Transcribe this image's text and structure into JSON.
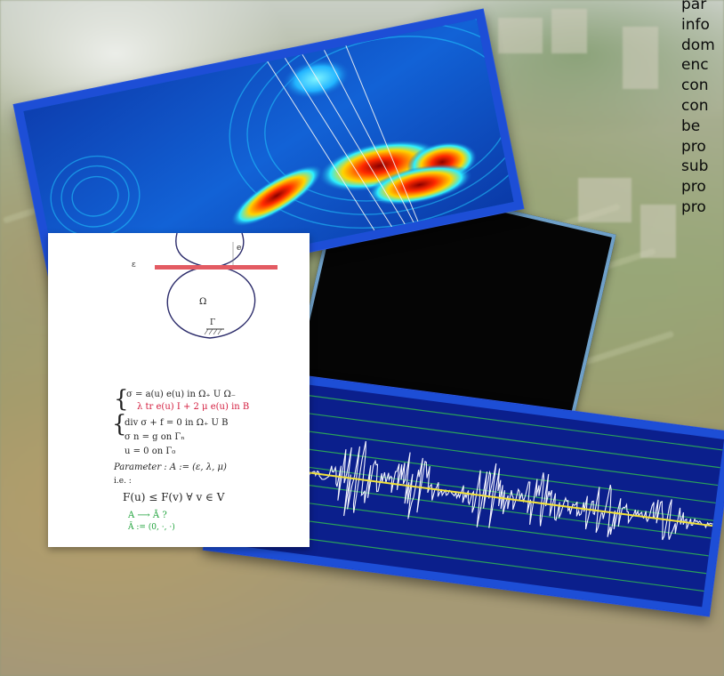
{
  "side_text": [
    "par",
    "info",
    "dom",
    "enc",
    "con",
    "con",
    "be",
    "pro",
    "sub",
    "pro",
    "pro"
  ],
  "math": {
    "epsilon": "ε",
    "e_label": "e",
    "omega_label": "Ω",
    "gamma_label": "Γ",
    "sigma_case1": "σ = a(u) e(u)   in  Ω₊ U Ω₋",
    "sigma_case2": "λ tr e(u) I + 2 μ e(u)   in B",
    "div_line": "div σ + f = 0    in  Ω₊ U B",
    "neumann_line": "σ n = g        on  Γₙ",
    "dirichlet_line": "u = 0          on  Γ₀",
    "parameter_line": "Parameter :  A := (ε, λ, μ)",
    "ie_line": "i.e. :",
    "functional_line": "F(u) ≤ F(v)   ∀ v ∈ V",
    "limit_line": "A ⟶ Ā ?",
    "limit_def": "Ā := (0, ·, ·)"
  },
  "colors": {
    "card_border_blue": "#1d4ed6",
    "wave_background": "#0f55c8",
    "signal_background": "#0b1f8c",
    "signal_trace": "#f4f4ff",
    "signal_mean": "#f2e43a",
    "signal_gridlines": "#2aa05a",
    "black_card": "#050505",
    "black_card_border": "#6fa0c8",
    "math_card": "#ffffff",
    "annotation_red": "#d31a3c",
    "annotation_green": "#1ea23a"
  }
}
